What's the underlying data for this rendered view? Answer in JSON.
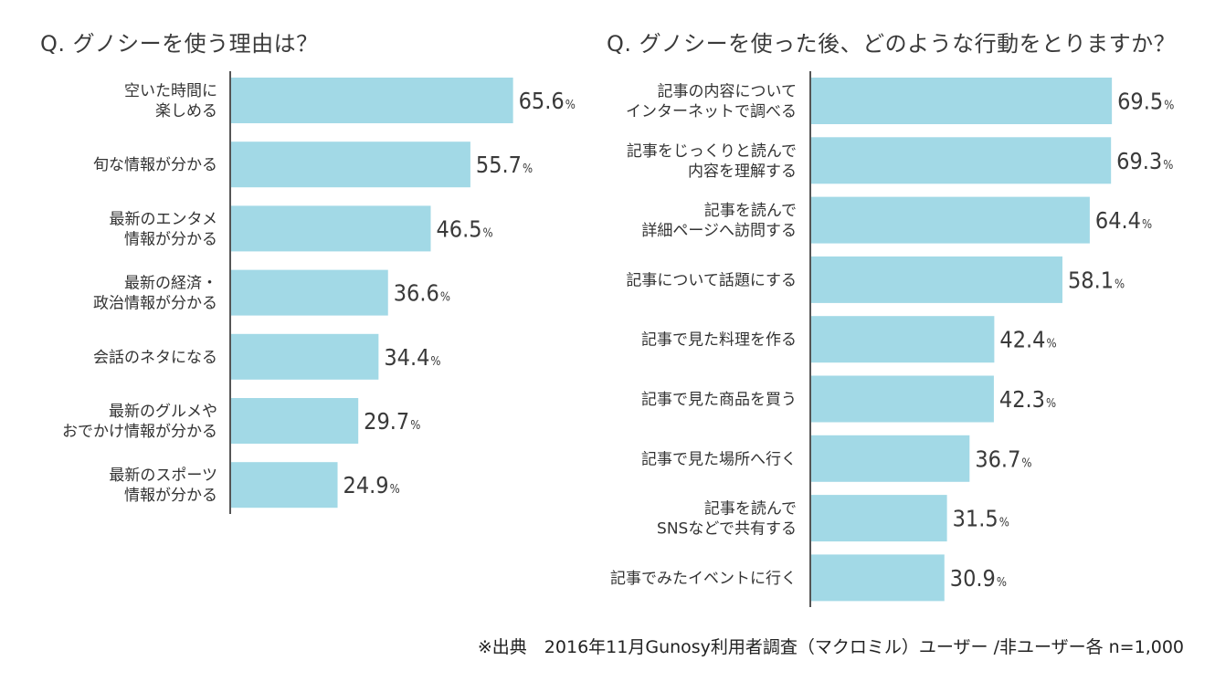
{
  "chart_data": [
    {
      "type": "bar",
      "orientation": "horizontal",
      "title": "Q. グノシーを使う理由は？",
      "categories": [
        [
          "空いた時間に",
          "楽しめる"
        ],
        [
          "旬な情報が分かる"
        ],
        [
          "最新のエンタメ",
          "情報が分かる"
        ],
        [
          "最新の経済・",
          "政治情報が分かる"
        ],
        [
          "会話のネタになる"
        ],
        [
          "最新のグルメや",
          "おでかけ情報が分かる"
        ],
        [
          "最新のスポーツ",
          "情報が分かる"
        ]
      ],
      "values": [
        65.6,
        55.7,
        46.5,
        36.6,
        34.4,
        29.7,
        24.9
      ],
      "value_labels": [
        "65.6",
        "55.7",
        "46.5",
        "36.6",
        "34.4",
        "29.7",
        "24.9"
      ],
      "unit": "%",
      "xlim": [
        0,
        100
      ],
      "bar_color": "#a2d9e6"
    },
    {
      "type": "bar",
      "orientation": "horizontal",
      "title": "Q. グノシーを使った後、どのような行動をとりますか？",
      "categories": [
        [
          "記事の内容について",
          "インターネットで調べる"
        ],
        [
          "記事をじっくりと読んで",
          "内容を理解する"
        ],
        [
          "記事を読んで",
          "詳細ページへ訪問する"
        ],
        [
          "記事について話題にする"
        ],
        [
          "記事で見た料理を作る"
        ],
        [
          "記事で見た商品を買う"
        ],
        [
          "記事で見た場所へ行く"
        ],
        [
          "記事を読んで",
          "SNSなどで共有する"
        ],
        [
          "記事でみたイベントに行く"
        ]
      ],
      "values": [
        69.5,
        69.3,
        64.4,
        58.1,
        42.4,
        42.3,
        36.7,
        31.5,
        30.9
      ],
      "value_labels": [
        "69.5",
        "69.3",
        "64.4",
        "58.1",
        "42.4",
        "42.3",
        "36.7",
        "31.5",
        "30.9"
      ],
      "unit": "%",
      "xlim": [
        0,
        100
      ],
      "bar_color": "#a2d9e6"
    }
  ],
  "source_note": "※出典　2016年11月Gunosy利用者調査（マクロミル）ユーザー /非ユーザー各 n=1,000"
}
